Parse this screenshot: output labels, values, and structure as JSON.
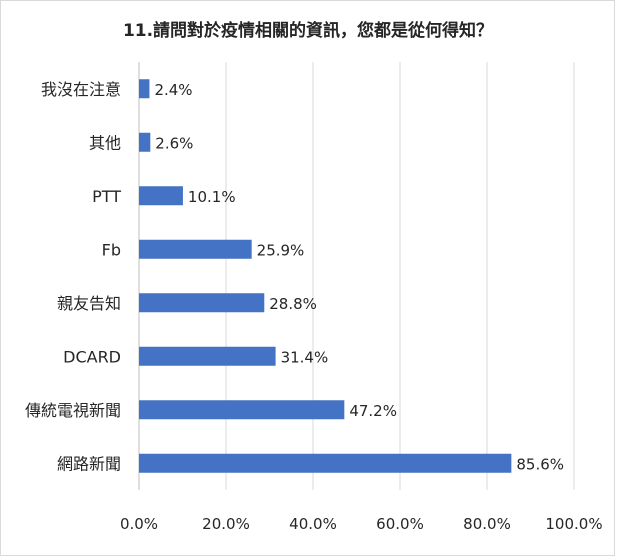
{
  "chart_data": {
    "type": "bar",
    "orientation": "horizontal",
    "title": "11.請問對於疫情相關的資訊，您都是從何得知？",
    "categories": [
      "我沒在注意",
      "其他",
      "PTT",
      "Fb",
      "親友告知",
      "DCARD",
      "傳統電視新聞",
      "網路新聞"
    ],
    "values": [
      2.4,
      2.6,
      10.1,
      25.9,
      28.8,
      31.4,
      47.2,
      85.6
    ],
    "value_labels": [
      "2.4%",
      "2.6%",
      "10.1%",
      "25.9%",
      "28.8%",
      "31.4%",
      "47.2%",
      "85.6%"
    ],
    "xlim": [
      0,
      100
    ],
    "xticks": [
      0,
      20,
      40,
      60,
      80,
      100
    ],
    "xtick_labels": [
      "0.0%",
      "20.0%",
      "40.0%",
      "60.0%",
      "80.0%",
      "100.0%"
    ],
    "xlabel": "",
    "ylabel": "",
    "grid": true,
    "legend": "none",
    "colors": {
      "bar": "#4472c4",
      "grid": "#d9d9d9",
      "text": "#262626"
    }
  }
}
